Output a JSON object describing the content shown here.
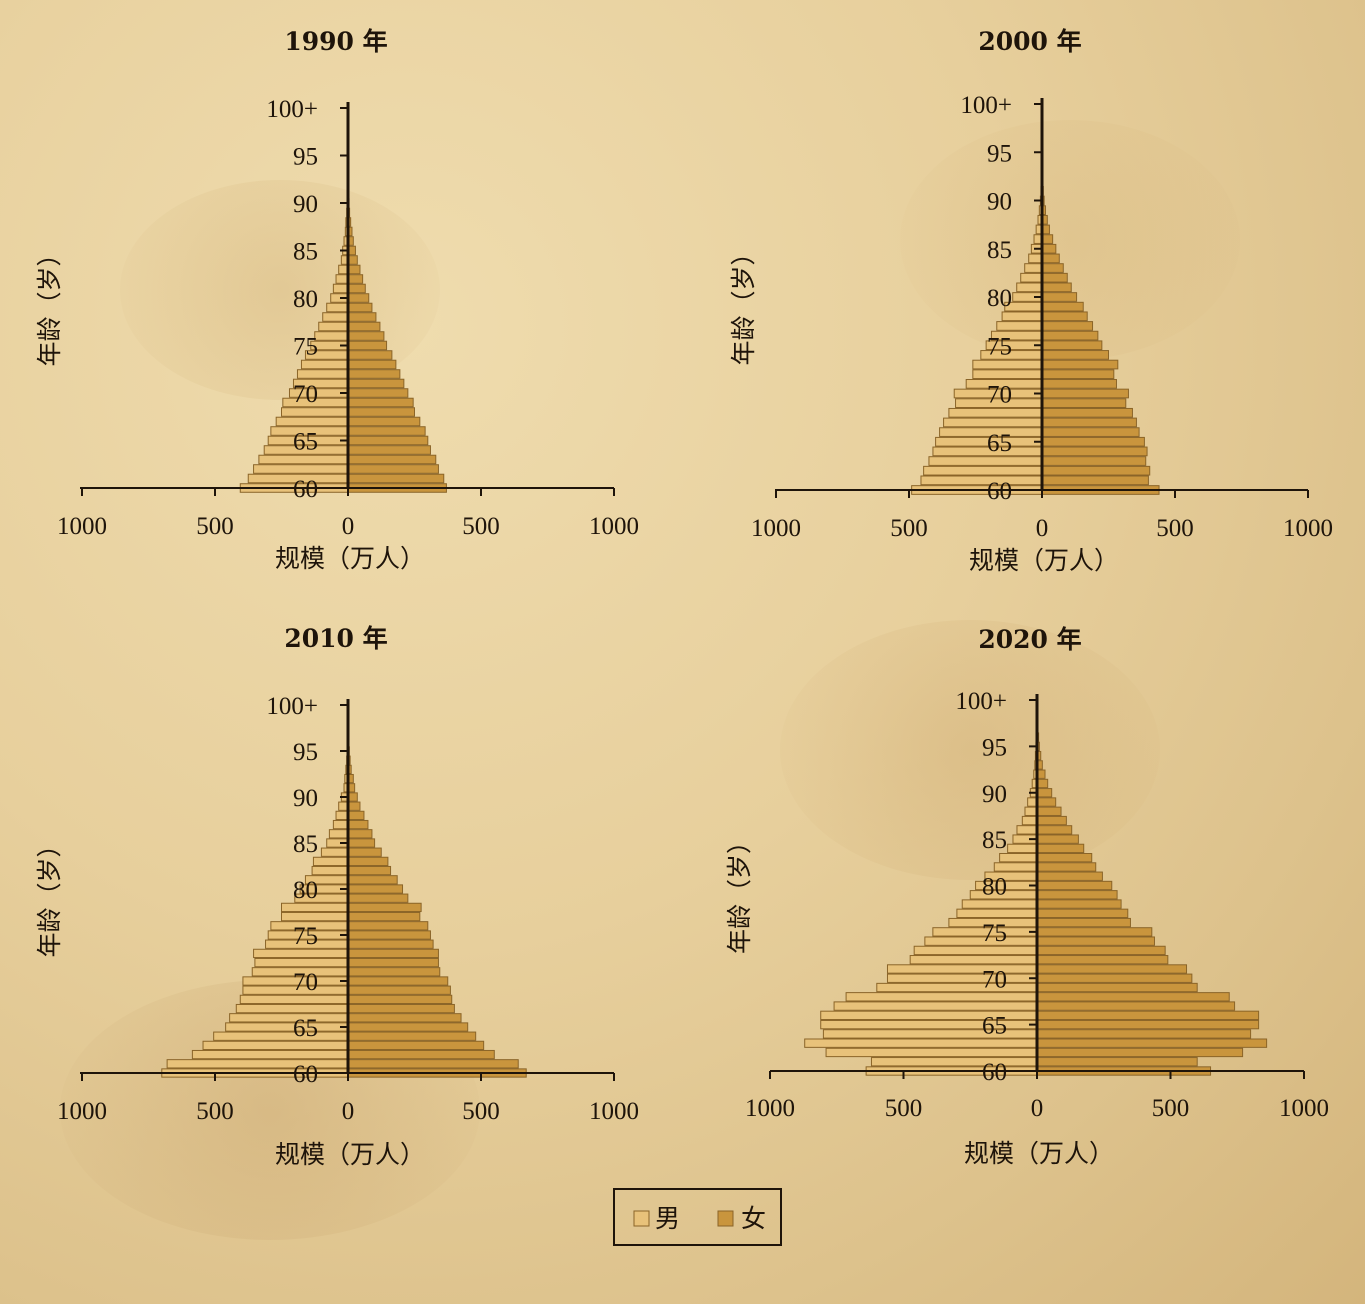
{
  "legend": [
    {
      "label": "男",
      "color": "#e8c27a"
    },
    {
      "label": "女",
      "color": "#c9953d"
    }
  ],
  "colors": {
    "axis": "#1e140a",
    "bar_stroke": "#8a6428",
    "male": "#e8c27a",
    "female": "#c9953d"
  },
  "chart_data": [
    {
      "type": "bar",
      "title": "1990 年",
      "xlabel": "规模（万人）",
      "ylabel": "年龄（岁）",
      "x_ticks": [
        "1000",
        "500",
        "0",
        "500",
        "1000"
      ],
      "y_ticks": [
        "60",
        "65",
        "70",
        "75",
        "80",
        "85",
        "90",
        "95",
        "100+"
      ],
      "xlim": [
        -1000,
        1000
      ],
      "ages": [
        60,
        61,
        62,
        63,
        64,
        65,
        66,
        67,
        68,
        69,
        70,
        71,
        72,
        73,
        74,
        75,
        76,
        77,
        78,
        79,
        80,
        81,
        82,
        83,
        84,
        85,
        86,
        87,
        88,
        89,
        90,
        91,
        92,
        93,
        94,
        95,
        96,
        97,
        98,
        99,
        "100+"
      ],
      "series": [
        {
          "name": "男",
          "values": [
            405,
            375,
            355,
            335,
            315,
            300,
            290,
            270,
            250,
            245,
            220,
            205,
            190,
            175,
            160,
            140,
            125,
            110,
            95,
            80,
            65,
            55,
            45,
            35,
            25,
            20,
            15,
            10,
            8,
            5,
            3,
            2,
            1,
            1,
            1,
            1,
            0,
            0,
            0,
            0,
            0
          ]
        },
        {
          "name": "女",
          "values": [
            370,
            360,
            340,
            330,
            310,
            300,
            290,
            270,
            250,
            245,
            225,
            210,
            195,
            180,
            165,
            145,
            135,
            120,
            105,
            90,
            78,
            65,
            55,
            45,
            35,
            28,
            20,
            15,
            10,
            6,
            4,
            3,
            2,
            1,
            1,
            1,
            0,
            0,
            0,
            0,
            0
          ]
        }
      ]
    },
    {
      "type": "bar",
      "title": "2000 年",
      "xlabel": "规模（万人）",
      "ylabel": "年龄（岁）",
      "x_ticks": [
        "1000",
        "500",
        "0",
        "500",
        "1000"
      ],
      "y_ticks": [
        "60",
        "65",
        "70",
        "75",
        "80",
        "85",
        "90",
        "95",
        "100+"
      ],
      "xlim": [
        -1000,
        1000
      ],
      "ages": [
        60,
        61,
        62,
        63,
        64,
        65,
        66,
        67,
        68,
        69,
        70,
        71,
        72,
        73,
        74,
        75,
        76,
        77,
        78,
        79,
        80,
        81,
        82,
        83,
        84,
        85,
        86,
        87,
        88,
        89,
        90,
        91,
        92,
        93,
        94,
        95,
        96,
        97,
        98,
        99,
        "100+"
      ],
      "series": [
        {
          "name": "男",
          "values": [
            490,
            455,
            445,
            425,
            410,
            400,
            385,
            370,
            350,
            325,
            330,
            285,
            260,
            260,
            230,
            210,
            190,
            170,
            150,
            140,
            110,
            95,
            80,
            65,
            50,
            40,
            30,
            22,
            15,
            10,
            6,
            4,
            3,
            2,
            1,
            1,
            0,
            0,
            0,
            0,
            0
          ]
        },
        {
          "name": "女",
          "values": [
            440,
            400,
            405,
            390,
            395,
            385,
            365,
            355,
            340,
            315,
            325,
            280,
            270,
            285,
            250,
            225,
            210,
            190,
            170,
            155,
            130,
            110,
            95,
            80,
            65,
            52,
            40,
            28,
            20,
            13,
            8,
            5,
            3,
            2,
            1,
            1,
            0,
            0,
            0,
            0,
            0
          ]
        }
      ]
    },
    {
      "type": "bar",
      "title": "2010 年",
      "xlabel": "规模（万人）",
      "ylabel": "年龄（岁）",
      "x_ticks": [
        "1000",
        "500",
        "0",
        "500",
        "1000"
      ],
      "y_ticks": [
        "60",
        "65",
        "70",
        "75",
        "80",
        "85",
        "90",
        "95",
        "100+"
      ],
      "xlim": [
        -1000,
        1000
      ],
      "ages": [
        60,
        61,
        62,
        63,
        64,
        65,
        66,
        67,
        68,
        69,
        70,
        71,
        72,
        73,
        74,
        75,
        76,
        77,
        78,
        79,
        80,
        81,
        82,
        83,
        84,
        85,
        86,
        87,
        88,
        89,
        90,
        91,
        92,
        93,
        94,
        95,
        96,
        97,
        98,
        99,
        "100+"
      ],
      "series": [
        {
          "name": "男",
          "values": [
            700,
            680,
            585,
            545,
            505,
            460,
            445,
            420,
            405,
            395,
            395,
            360,
            350,
            355,
            310,
            300,
            290,
            250,
            250,
            200,
            180,
            160,
            135,
            130,
            100,
            80,
            70,
            55,
            45,
            35,
            25,
            15,
            12,
            8,
            5,
            3,
            2,
            1,
            1,
            0,
            0
          ]
        },
        {
          "name": "女",
          "values": [
            670,
            640,
            550,
            510,
            480,
            450,
            425,
            400,
            390,
            385,
            375,
            345,
            340,
            340,
            320,
            310,
            300,
            270,
            275,
            225,
            205,
            185,
            160,
            150,
            125,
            100,
            90,
            75,
            60,
            45,
            35,
            25,
            20,
            12,
            8,
            5,
            3,
            2,
            1,
            1,
            0
          ]
        }
      ]
    },
    {
      "type": "bar",
      "title": "2020 年",
      "xlabel": "规模（万人）",
      "ylabel": "年龄（岁）",
      "x_ticks": [
        "1000",
        "500",
        "0",
        "500",
        "1000"
      ],
      "y_ticks": [
        "60",
        "65",
        "70",
        "75",
        "80",
        "85",
        "90",
        "95",
        "100+"
      ],
      "xlim": [
        -1000,
        1000
      ],
      "ages": [
        60,
        61,
        62,
        63,
        64,
        65,
        66,
        67,
        68,
        69,
        70,
        71,
        72,
        73,
        74,
        75,
        76,
        77,
        78,
        79,
        80,
        81,
        82,
        83,
        84,
        85,
        86,
        87,
        88,
        89,
        90,
        91,
        92,
        93,
        94,
        95,
        96,
        97,
        98,
        99,
        "100+"
      ],
      "series": [
        {
          "name": "男",
          "values": [
            640,
            620,
            790,
            870,
            800,
            810,
            810,
            760,
            715,
            600,
            560,
            560,
            475,
            460,
            420,
            390,
            330,
            300,
            280,
            250,
            230,
            195,
            160,
            140,
            110,
            90,
            75,
            55,
            45,
            35,
            25,
            18,
            12,
            8,
            6,
            4,
            3,
            2,
            1,
            0,
            0
          ]
        },
        {
          "name": "女",
          "values": [
            650,
            600,
            770,
            860,
            800,
            830,
            830,
            740,
            720,
            600,
            580,
            560,
            490,
            480,
            440,
            430,
            350,
            340,
            315,
            300,
            280,
            245,
            220,
            205,
            175,
            155,
            130,
            110,
            90,
            70,
            55,
            40,
            30,
            20,
            14,
            9,
            6,
            3,
            2,
            1,
            0
          ]
        }
      ]
    }
  ]
}
